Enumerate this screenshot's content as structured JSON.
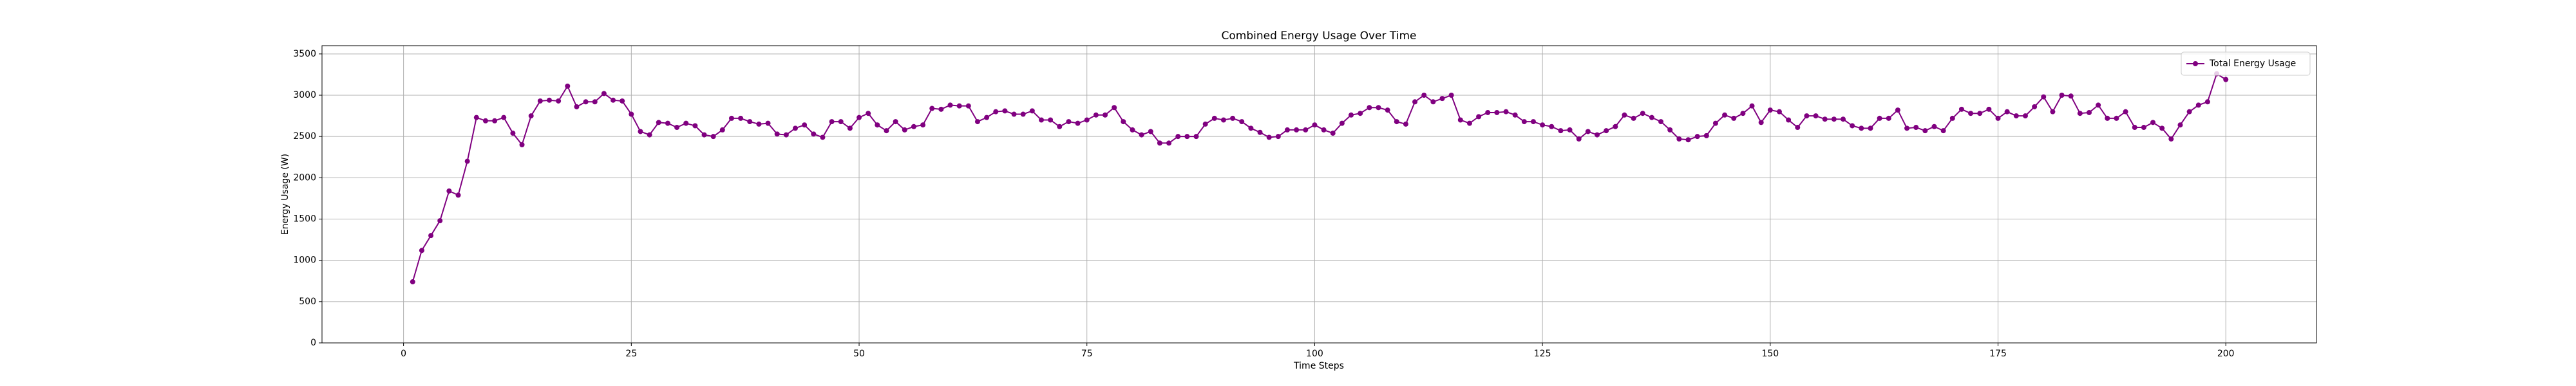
{
  "chart_data": {
    "type": "line",
    "title": "Combined Energy Usage Over Time",
    "x_label": "Time Steps",
    "y_label": "Energy Usage (W)",
    "x": [
      1,
      2,
      3,
      4,
      5,
      6,
      7,
      8,
      9,
      10,
      11,
      12,
      13,
      14,
      15,
      16,
      17,
      18,
      19,
      20,
      21,
      22,
      23,
      24,
      25,
      26,
      27,
      28,
      29,
      30,
      31,
      32,
      33,
      34,
      35,
      36,
      37,
      38,
      39,
      40,
      41,
      42,
      43,
      44,
      45,
      46,
      47,
      48,
      49,
      50,
      51,
      52,
      53,
      54,
      55,
      56,
      57,
      58,
      59,
      60,
      61,
      62,
      63,
      64,
      65,
      66,
      67,
      68,
      69,
      70,
      71,
      72,
      73,
      74,
      75,
      76,
      77,
      78,
      79,
      80,
      81,
      82,
      83,
      84,
      85,
      86,
      87,
      88,
      89,
      90,
      91,
      92,
      93,
      94,
      95,
      96,
      97,
      98,
      99,
      100,
      101,
      102,
      103,
      104,
      105,
      106,
      107,
      108,
      109,
      110,
      111,
      112,
      113,
      114,
      115,
      116,
      117,
      118,
      119,
      120,
      121,
      122,
      123,
      124,
      125,
      126,
      127,
      128,
      129,
      130,
      131,
      132,
      133,
      134,
      135,
      136,
      137,
      138,
      139,
      140,
      141,
      142,
      143,
      144,
      145,
      146,
      147,
      148,
      149,
      150,
      151,
      152,
      153,
      154,
      155,
      156,
      157,
      158,
      159,
      160,
      161,
      162,
      163,
      164,
      165,
      166,
      167,
      168,
      169,
      170,
      171,
      172,
      173,
      174,
      175,
      176,
      177,
      178,
      179,
      180,
      181,
      182,
      183,
      184,
      185,
      186,
      187,
      188,
      189,
      190,
      191,
      192,
      193,
      194,
      195,
      196,
      197,
      198,
      199,
      200
    ],
    "series": [
      {
        "name": "Total Energy Usage",
        "color": "#800080",
        "values": [
          740,
          1120,
          1300,
          1480,
          1840,
          1790,
          2200,
          2730,
          2690,
          2690,
          2730,
          2540,
          2400,
          2750,
          2930,
          2940,
          2930,
          3110,
          2860,
          2920,
          2920,
          3020,
          2940,
          2930,
          2770,
          2560,
          2520,
          2670,
          2660,
          2610,
          2660,
          2630,
          2520,
          2500,
          2580,
          2720,
          2720,
          2680,
          2650,
          2660,
          2530,
          2520,
          2600,
          2640,
          2530,
          2490,
          2680,
          2680,
          2600,
          2730,
          2780,
          2640,
          2570,
          2680,
          2580,
          2620,
          2640,
          2840,
          2830,
          2880,
          2870,
          2870,
          2680,
          2730,
          2800,
          2810,
          2770,
          2770,
          2810,
          2700,
          2700,
          2620,
          2680,
          2660,
          2700,
          2760,
          2760,
          2850,
          2680,
          2580,
          2520,
          2560,
          2420,
          2420,
          2500,
          2500,
          2500,
          2650,
          2720,
          2700,
          2720,
          2680,
          2600,
          2550,
          2490,
          2500,
          2580,
          2580,
          2580,
          2640,
          2580,
          2540,
          2660,
          2760,
          2780,
          2850,
          2850,
          2820,
          2680,
          2650,
          2920,
          3000,
          2920,
          2960,
          3000,
          2700,
          2660,
          2740,
          2790,
          2790,
          2800,
          2760,
          2680,
          2680,
          2640,
          2620,
          2570,
          2580,
          2470,
          2560,
          2520,
          2570,
          2620,
          2760,
          2720,
          2780,
          2730,
          2680,
          2580,
          2470,
          2460,
          2500,
          2510,
          2660,
          2760,
          2720,
          2780,
          2870,
          2670,
          2820,
          2800,
          2700,
          2610,
          2750,
          2750,
          2710,
          2710,
          2710,
          2630,
          2600,
          2600,
          2720,
          2720,
          2820,
          2600,
          2610,
          2570,
          2620,
          2570,
          2720,
          2830,
          2780,
          2780,
          2830,
          2720,
          2800,
          2750,
          2750,
          2860,
          2980,
          2800,
          3000,
          2990,
          2780,
          2790,
          2880,
          2720,
          2720,
          2800,
          2610,
          2610,
          2670,
          2600,
          2470,
          2640,
          2800,
          2880,
          2920,
          3260,
          3190
        ]
      }
    ],
    "xlim": [
      -8.95,
      209.95
    ],
    "xticks": [
      0,
      25,
      50,
      75,
      100,
      125,
      150,
      175,
      200
    ],
    "ylim": [
      0,
      3600
    ],
    "yticks": [
      0,
      500,
      1000,
      1500,
      2000,
      2500,
      3000,
      3500
    ],
    "grid": true,
    "legend": "upper right"
  }
}
